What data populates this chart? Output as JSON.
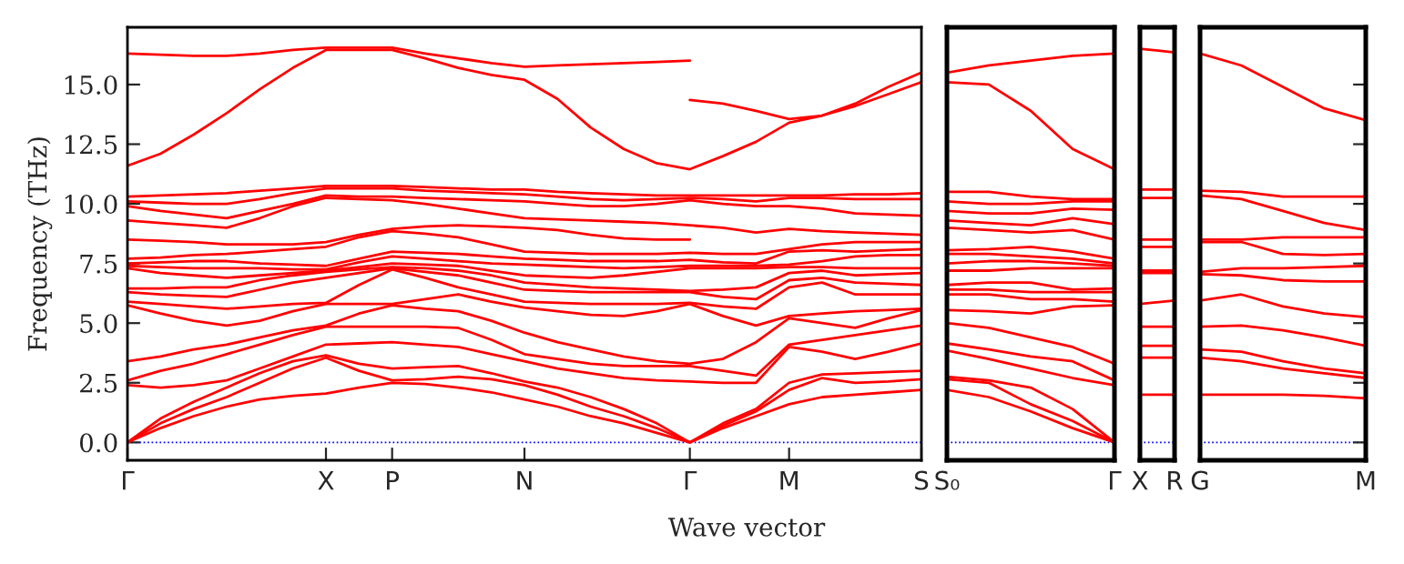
{
  "chart_data": [
    {
      "type": "line",
      "ylabel": "Frequency (THz)",
      "xlabel": "Wave vector",
      "categories": [
        "Γ",
        null,
        null,
        null,
        null,
        null,
        "X",
        null,
        "P",
        null,
        null,
        null,
        "N",
        null,
        null,
        null,
        null,
        "Γ",
        null,
        null,
        "M",
        null,
        null,
        null,
        "S"
      ],
      "ylim": [
        -0.75,
        17.4
      ],
      "yticks": [
        {
          "value": 0,
          "label": "0.0"
        },
        {
          "value": 2.5,
          "label": "2.5"
        },
        {
          "value": 5,
          "label": "5.0"
        },
        {
          "value": 7.5,
          "label": "7.5"
        },
        {
          "value": 10,
          "label": "10.0"
        },
        {
          "value": 12.5,
          "label": "12.5"
        },
        {
          "value": 15,
          "label": "15.0"
        }
      ],
      "ref_lines": [
        {
          "axis": "y",
          "value": 0,
          "color": "#0000ff",
          "line_style": "dotted"
        }
      ],
      "series": [
        {
          "color": "#ff0000",
          "values": [
            0,
            0.6,
            1.1,
            1.5,
            1.8,
            1.95,
            2.05,
            2.3,
            2.5,
            2.45,
            2.3,
            2.1,
            1.8,
            1.5,
            1.1,
            0.8,
            0.4,
            0,
            0.6,
            1.1,
            1.6,
            1.9,
            2.0,
            2.1,
            2.2
          ]
        },
        {
          "color": "#ff0000",
          "values": [
            0,
            0.8,
            1.4,
            1.9,
            2.5,
            3.1,
            3.55,
            3.0,
            2.6,
            2.65,
            2.75,
            2.65,
            2.4,
            2.0,
            1.5,
            1.1,
            0.6,
            0,
            0.7,
            1.3,
            2.2,
            2.7,
            2.5,
            2.55,
            2.65
          ]
        },
        {
          "color": "#ff0000",
          "values": [
            0,
            1.0,
            1.7,
            2.3,
            2.9,
            3.4,
            3.65,
            3.3,
            3.1,
            3.15,
            3.2,
            2.9,
            2.55,
            2.3,
            1.9,
            1.4,
            0.8,
            0,
            0.8,
            1.4,
            2.5,
            2.85,
            2.9,
            2.95,
            3.0
          ]
        },
        {
          "color": "#ff0000",
          "values": [
            2.4,
            2.3,
            2.4,
            2.6,
            3.1,
            3.6,
            4.1,
            4.15,
            4.2,
            4.1,
            4.0,
            3.7,
            3.4,
            3.1,
            2.9,
            2.7,
            2.6,
            2.55,
            2.5,
            2.5,
            4.0,
            3.8,
            3.5,
            3.8,
            4.15
          ]
        },
        {
          "color": "#ff0000",
          "values": [
            2.6,
            3.0,
            3.3,
            3.7,
            4.1,
            4.5,
            4.85,
            4.85,
            4.85,
            4.85,
            4.8,
            4.3,
            3.7,
            3.5,
            3.3,
            3.2,
            3.2,
            3.2,
            3.0,
            2.8,
            4.1,
            4.3,
            4.5,
            4.7,
            4.9
          ]
        },
        {
          "color": "#ff0000",
          "values": [
            3.4,
            3.6,
            3.9,
            4.1,
            4.4,
            4.7,
            4.9,
            5.4,
            5.75,
            5.6,
            5.5,
            5.1,
            4.6,
            4.2,
            3.9,
            3.6,
            3.4,
            3.3,
            3.5,
            4.2,
            5.2,
            5.0,
            4.8,
            5.2,
            5.55
          ]
        },
        {
          "color": "#ff0000",
          "values": [
            5.75,
            5.4,
            5.1,
            4.9,
            5.1,
            5.5,
            5.8,
            5.8,
            5.8,
            6.0,
            6.2,
            5.9,
            5.65,
            5.5,
            5.35,
            5.3,
            5.5,
            5.8,
            5.3,
            4.9,
            5.3,
            5.4,
            5.5,
            5.55,
            5.6
          ]
        },
        {
          "color": "#ff0000",
          "values": [
            5.9,
            5.8,
            5.7,
            5.6,
            5.7,
            5.8,
            5.85,
            6.6,
            7.25,
            6.9,
            6.5,
            6.2,
            5.9,
            5.85,
            5.8,
            5.8,
            5.8,
            5.85,
            5.7,
            5.6,
            6.5,
            6.7,
            6.2,
            6.2,
            6.2
          ]
        },
        {
          "color": "#ff0000",
          "values": [
            6.3,
            6.2,
            6.15,
            6.1,
            6.4,
            6.7,
            6.9,
            7.1,
            7.3,
            7.15,
            7.0,
            6.7,
            6.4,
            6.35,
            6.3,
            6.3,
            6.3,
            6.3,
            6.1,
            6.0,
            6.8,
            6.9,
            6.7,
            6.65,
            6.6
          ]
        },
        {
          "color": "#ff0000",
          "values": [
            6.45,
            6.45,
            6.5,
            6.5,
            6.8,
            7.0,
            7.15,
            7.25,
            7.35,
            7.3,
            7.2,
            7.0,
            6.7,
            6.6,
            6.5,
            6.45,
            6.4,
            6.35,
            6.4,
            6.5,
            7.1,
            7.2,
            7.0,
            7.05,
            7.1
          ]
        },
        {
          "color": "#ff0000",
          "values": [
            7.3,
            7.1,
            7.0,
            6.9,
            7.0,
            7.1,
            7.2,
            7.35,
            7.5,
            7.45,
            7.4,
            7.2,
            7.0,
            6.95,
            6.9,
            7.0,
            7.15,
            7.3,
            7.3,
            7.3,
            7.35,
            7.35,
            7.3,
            7.3,
            7.3
          ]
        },
        {
          "color": "#ff0000",
          "values": [
            7.4,
            7.35,
            7.3,
            7.3,
            7.3,
            7.25,
            7.25,
            7.55,
            7.8,
            7.7,
            7.6,
            7.5,
            7.45,
            7.4,
            7.35,
            7.3,
            7.35,
            7.4,
            7.4,
            7.4,
            7.45,
            7.6,
            7.8,
            7.85,
            7.85
          ]
        },
        {
          "color": "#ff0000",
          "values": [
            7.5,
            7.55,
            7.6,
            7.6,
            7.5,
            7.45,
            7.4,
            7.7,
            8.0,
            7.95,
            7.9,
            7.8,
            7.7,
            7.65,
            7.6,
            7.6,
            7.6,
            7.65,
            7.55,
            7.5,
            8.0,
            8.05,
            8.0,
            8.05,
            8.1
          ]
        },
        {
          "color": "#ff0000",
          "values": [
            7.7,
            7.75,
            7.85,
            7.9,
            8.0,
            8.1,
            8.2,
            8.6,
            8.85,
            8.75,
            8.6,
            8.3,
            8.0,
            7.95,
            7.9,
            7.9,
            7.9,
            7.95,
            7.9,
            7.9,
            8.1,
            8.3,
            8.4,
            8.4,
            8.4
          ]
        },
        {
          "color": "#ff0000",
          "values": [
            8.5,
            8.45,
            8.4,
            8.3,
            8.3,
            8.3,
            8.4,
            8.7,
            8.95,
            9.05,
            9.1,
            9.05,
            9.0,
            8.9,
            8.7,
            8.55,
            8.5,
            8.5,
            null,
            null,
            null,
            null,
            null,
            null,
            null
          ]
        },
        {
          "color": "#ff0000",
          "values": [
            9.3,
            9.2,
            9.1,
            9.0,
            9.4,
            9.9,
            10.25,
            10.2,
            10.15,
            10.0,
            9.8,
            9.6,
            9.4,
            9.35,
            9.3,
            9.25,
            9.2,
            9.1,
            9.0,
            8.8,
            8.95,
            8.85,
            8.8,
            8.75,
            8.7
          ]
        },
        {
          "color": "#ff0000",
          "values": [
            9.9,
            9.7,
            9.55,
            9.4,
            9.7,
            10.0,
            10.35,
            10.3,
            10.3,
            10.25,
            10.2,
            10.15,
            10.1,
            10.0,
            9.9,
            9.9,
            10.0,
            10.15,
            10.0,
            9.9,
            9.9,
            9.8,
            9.6,
            9.55,
            9.5
          ]
        },
        {
          "color": "#ff0000",
          "values": [
            10.1,
            10.05,
            10.0,
            10.0,
            10.2,
            10.45,
            10.65,
            10.65,
            10.65,
            10.55,
            10.5,
            10.45,
            10.4,
            10.3,
            10.2,
            10.15,
            10.2,
            10.25,
            10.2,
            10.1,
            10.25,
            10.25,
            10.2,
            10.2,
            10.2
          ]
        },
        {
          "color": "#ff0000",
          "values": [
            10.3,
            10.35,
            10.4,
            10.45,
            10.55,
            10.65,
            10.75,
            10.75,
            10.75,
            10.7,
            10.65,
            10.6,
            10.6,
            10.5,
            10.45,
            10.4,
            10.35,
            10.35,
            10.35,
            10.35,
            10.35,
            10.35,
            10.4,
            10.4,
            10.45
          ]
        },
        {
          "color": "#ff0000",
          "values": [
            11.6,
            12.1,
            12.9,
            13.8,
            14.8,
            15.7,
            16.45,
            16.45,
            16.45,
            16.1,
            15.7,
            15.4,
            15.2,
            14.4,
            13.2,
            12.3,
            11.7,
            11.45,
            12.0,
            12.6,
            13.4,
            13.7,
            14.1,
            14.6,
            15.1
          ]
        },
        {
          "color": "#ff0000",
          "values": [
            16.3,
            16.25,
            16.2,
            16.2,
            16.3,
            16.45,
            16.55,
            16.55,
            16.55,
            16.3,
            16.1,
            15.9,
            15.75,
            15.8,
            15.85,
            15.9,
            15.95,
            16.0,
            null,
            null,
            null,
            null,
            null,
            null,
            null
          ]
        },
        {
          "color": "#ff0000",
          "values": [
            null,
            null,
            null,
            null,
            null,
            null,
            null,
            null,
            null,
            null,
            null,
            null,
            null,
            null,
            null,
            null,
            null,
            14.35,
            14.2,
            13.9,
            13.55,
            13.7,
            14.2,
            14.9,
            15.5
          ]
        }
      ]
    },
    {
      "type": "line",
      "tick_labels": "x",
      "categories": [
        "S₀",
        null,
        null,
        null,
        "Γ"
      ],
      "ylim": [
        -0.75,
        17.4
      ],
      "yticks": [
        {
          "value": 0,
          "label": null
        },
        {
          "value": 2.5,
          "label": null
        },
        {
          "value": 5,
          "label": null
        },
        {
          "value": 7.5,
          "label": null
        },
        {
          "value": 10,
          "label": null
        },
        {
          "value": 12.5,
          "label": null
        },
        {
          "value": 15,
          "label": null
        }
      ],
      "ref_lines": [
        {
          "axis": "y",
          "value": 0,
          "color": "#0000ff",
          "line_style": "dotted"
        }
      ],
      "series": [
        {
          "color": "#ff0000",
          "values": [
            2.2,
            1.9,
            1.3,
            0.6,
            0
          ]
        },
        {
          "color": "#ff0000",
          "values": [
            2.65,
            2.5,
            1.6,
            0.9,
            0
          ]
        },
        {
          "color": "#ff0000",
          "values": [
            2.75,
            2.6,
            2.3,
            1.4,
            0
          ]
        },
        {
          "color": "#ff0000",
          "values": [
            3.85,
            3.5,
            3.1,
            2.7,
            2.4
          ]
        },
        {
          "color": "#ff0000",
          "values": [
            4.15,
            3.9,
            3.6,
            3.4,
            2.6
          ]
        },
        {
          "color": "#ff0000",
          "values": [
            5.0,
            4.8,
            4.4,
            4.0,
            3.3
          ]
        },
        {
          "color": "#ff0000",
          "values": [
            5.55,
            5.5,
            5.4,
            5.7,
            5.75
          ]
        },
        {
          "color": "#ff0000",
          "values": [
            6.2,
            6.2,
            6.0,
            6.0,
            5.9
          ]
        },
        {
          "color": "#ff0000",
          "values": [
            6.4,
            6.4,
            6.3,
            6.3,
            6.3
          ]
        },
        {
          "color": "#ff0000",
          "values": [
            6.6,
            6.7,
            6.7,
            6.4,
            6.45
          ]
        },
        {
          "color": "#ff0000",
          "values": [
            7.2,
            7.2,
            7.3,
            7.3,
            7.3
          ]
        },
        {
          "color": "#ff0000",
          "values": [
            7.5,
            7.6,
            7.6,
            7.5,
            7.4
          ]
        },
        {
          "color": "#ff0000",
          "values": [
            7.9,
            7.9,
            7.8,
            7.7,
            7.5
          ]
        },
        {
          "color": "#ff0000",
          "values": [
            8.05,
            8.1,
            8.2,
            8.0,
            7.7
          ]
        },
        {
          "color": "#ff0000",
          "values": [
            9.0,
            8.9,
            8.8,
            8.9,
            8.5
          ]
        },
        {
          "color": "#ff0000",
          "values": [
            9.3,
            9.2,
            9.1,
            9.4,
            9.15
          ]
        },
        {
          "color": "#ff0000",
          "values": [
            9.7,
            9.6,
            9.6,
            9.8,
            9.75
          ]
        },
        {
          "color": "#ff0000",
          "values": [
            10.1,
            10.0,
            10.0,
            10.1,
            10.1
          ]
        },
        {
          "color": "#ff0000",
          "values": [
            10.5,
            10.5,
            10.3,
            10.2,
            10.2
          ]
        },
        {
          "color": "#ff0000",
          "values": [
            15.1,
            15.0,
            13.9,
            12.3,
            11.45
          ]
        },
        {
          "color": "#ff0000",
          "values": [
            15.5,
            15.8,
            16.0,
            16.2,
            16.3
          ]
        }
      ]
    },
    {
      "type": "line",
      "tick_labels": "x",
      "categories": [
        "X",
        "R"
      ],
      "ylim": [
        -0.75,
        17.4
      ],
      "yticks": [
        {
          "value": 0,
          "label": null
        },
        {
          "value": 2.5,
          "label": null
        },
        {
          "value": 5,
          "label": null
        },
        {
          "value": 7.5,
          "label": null
        },
        {
          "value": 10,
          "label": null
        },
        {
          "value": 12.5,
          "label": null
        },
        {
          "value": 15,
          "label": null
        }
      ],
      "ref_lines": [
        {
          "axis": "y",
          "value": 0,
          "color": "#0000ff",
          "line_style": "dotted"
        }
      ],
      "series": [
        {
          "color": "#ff0000",
          "values": [
            2.0,
            2.0
          ]
        },
        {
          "color": "#ff0000",
          "values": [
            3.55,
            3.55
          ]
        },
        {
          "color": "#ff0000",
          "values": [
            4.05,
            4.05
          ]
        },
        {
          "color": "#ff0000",
          "values": [
            4.85,
            4.85
          ]
        },
        {
          "color": "#ff0000",
          "values": [
            5.8,
            5.95
          ]
        },
        {
          "color": "#ff0000",
          "values": [
            7.1,
            7.1
          ]
        },
        {
          "color": "#ff0000",
          "values": [
            7.2,
            7.2
          ]
        },
        {
          "color": "#ff0000",
          "values": [
            8.2,
            8.2
          ]
        },
        {
          "color": "#ff0000",
          "values": [
            8.5,
            8.5
          ]
        },
        {
          "color": "#ff0000",
          "values": [
            10.25,
            10.25
          ]
        },
        {
          "color": "#ff0000",
          "values": [
            10.6,
            10.6
          ]
        },
        {
          "color": "#ff0000",
          "values": [
            16.5,
            16.35
          ]
        }
      ]
    },
    {
      "type": "line",
      "tick_labels": "x",
      "categories": [
        "G",
        null,
        null,
        null,
        "M"
      ],
      "ylim": [
        -0.75,
        17.4
      ],
      "yticks": [
        {
          "value": 0,
          "label": null
        },
        {
          "value": 2.5,
          "label": null
        },
        {
          "value": 5,
          "label": null
        },
        {
          "value": 7.5,
          "label": null
        },
        {
          "value": 10,
          "label": null
        },
        {
          "value": 12.5,
          "label": null
        },
        {
          "value": 15,
          "label": null
        }
      ],
      "ref_lines": [
        {
          "axis": "y",
          "value": 0,
          "color": "#0000ff",
          "line_style": "dotted"
        }
      ],
      "series": [
        {
          "color": "#ff0000",
          "values": [
            2.0,
            2.0,
            2.0,
            1.95,
            1.85
          ]
        },
        {
          "color": "#ff0000",
          "values": [
            3.55,
            3.4,
            3.1,
            2.9,
            2.7
          ]
        },
        {
          "color": "#ff0000",
          "values": [
            3.9,
            3.8,
            3.4,
            3.1,
            2.9
          ]
        },
        {
          "color": "#ff0000",
          "values": [
            4.85,
            4.9,
            4.7,
            4.4,
            4.05
          ]
        },
        {
          "color": "#ff0000",
          "values": [
            5.95,
            6.2,
            5.7,
            5.4,
            5.25
          ]
        },
        {
          "color": "#ff0000",
          "values": [
            7.05,
            7.0,
            6.8,
            6.75,
            6.75
          ]
        },
        {
          "color": "#ff0000",
          "values": [
            7.15,
            7.3,
            7.3,
            7.35,
            7.4
          ]
        },
        {
          "color": "#ff0000",
          "values": [
            8.4,
            8.4,
            7.9,
            7.85,
            7.9
          ]
        },
        {
          "color": "#ff0000",
          "values": [
            8.5,
            8.5,
            8.6,
            8.6,
            8.6
          ]
        },
        {
          "color": "#ff0000",
          "values": [
            10.35,
            10.2,
            9.7,
            9.2,
            8.9
          ]
        },
        {
          "color": "#ff0000",
          "values": [
            10.55,
            10.5,
            10.3,
            10.3,
            10.3
          ]
        },
        {
          "color": "#ff0000",
          "values": [
            16.3,
            15.8,
            14.9,
            14.0,
            13.5
          ]
        }
      ]
    }
  ]
}
